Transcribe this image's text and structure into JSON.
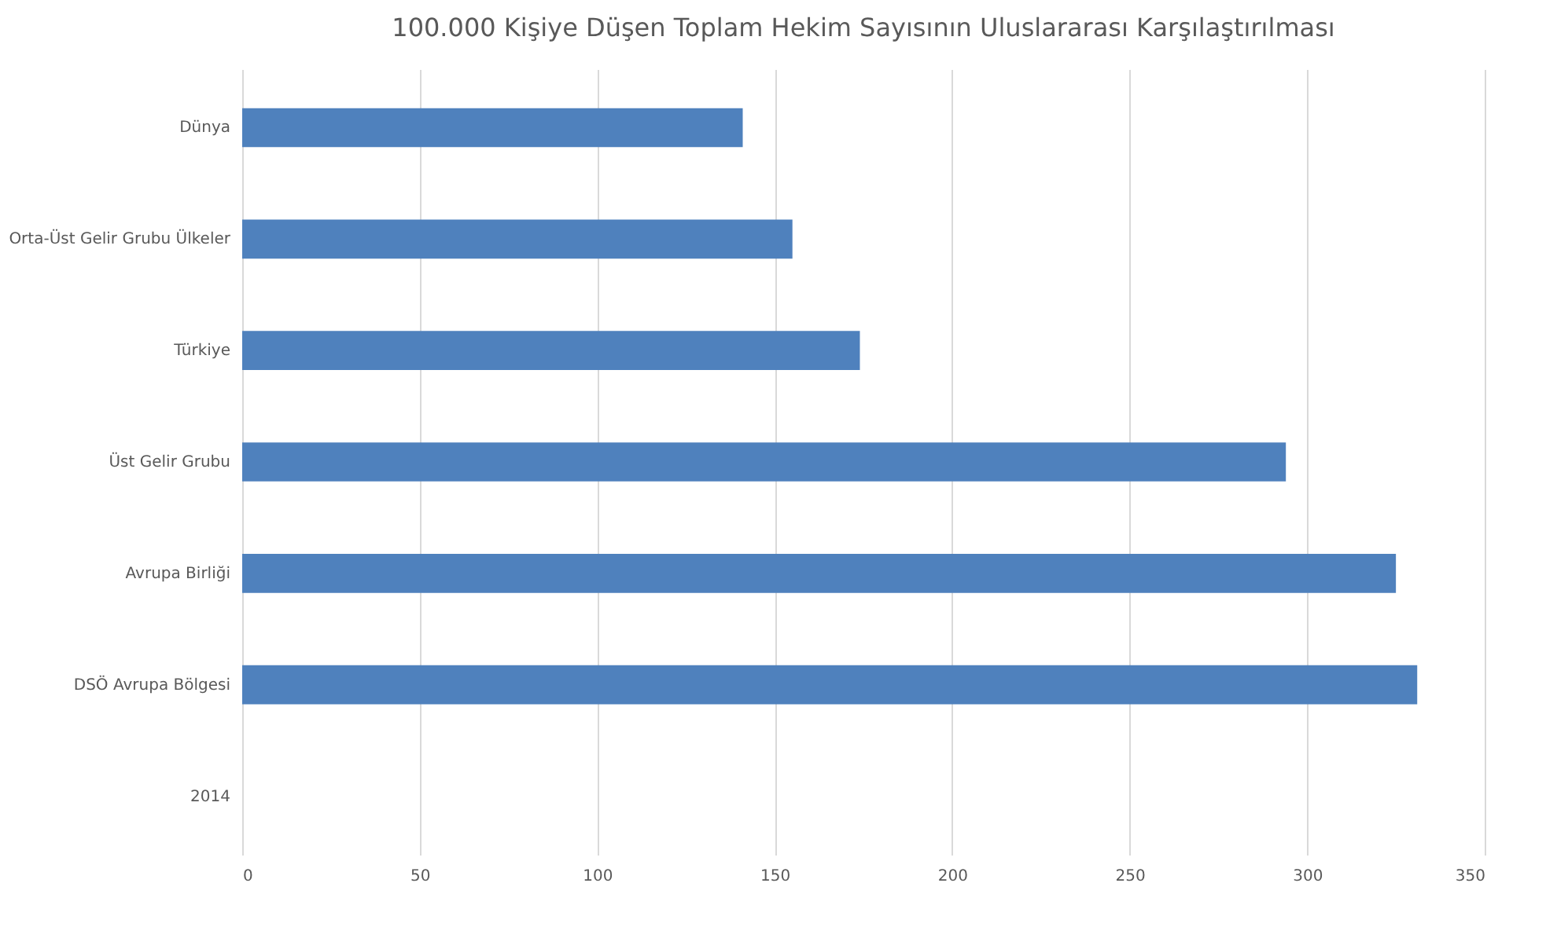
{
  "chart_data": {
    "type": "bar",
    "orientation": "horizontal",
    "title": "100.000 Kişiye Düşen Toplam Hekim Sayısının Uluslararası Karşılaştırılması",
    "categories": [
      "Dünya",
      "Orta-Üst Gelir Grubu Ülkeler",
      "Türkiye",
      "Üst Gelir Grubu",
      "Avrupa Birliği",
      "DSÖ Avrupa Bölgesi",
      "2014"
    ],
    "values": [
      141,
      155,
      174,
      294,
      325,
      331,
      null
    ],
    "color": "#4f81bd",
    "xlim": [
      0,
      350
    ],
    "xticks": [
      0,
      50,
      100,
      150,
      200,
      250,
      300,
      350
    ],
    "grid": "x"
  }
}
